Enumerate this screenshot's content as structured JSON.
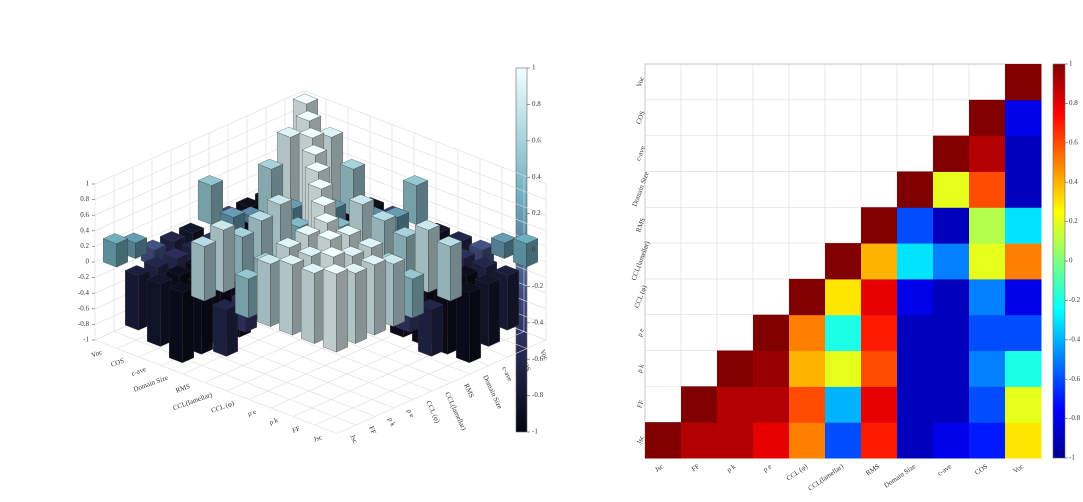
{
  "chart_data": [
    {
      "type": "bar3d",
      "labels": [
        "Jsc",
        "FF",
        "ρ k",
        "ρ e",
        "CCL (φ)",
        "CCL(lamellar)",
        "RMS",
        "Domain Size",
        "c-ave",
        "COS",
        "Voc"
      ],
      "matrix": [
        [
          1,
          0.9,
          0.9,
          0.8,
          0.5,
          -0.6,
          0.7,
          -0.9,
          -0.8,
          -0.7,
          0.3
        ],
        [
          0.9,
          1,
          0.9,
          0.9,
          0.6,
          -0.4,
          0.8,
          -0.9,
          -0.9,
          -0.6,
          0.2
        ],
        [
          0.9,
          0.9,
          1,
          0.95,
          0.4,
          0.2,
          0.6,
          -0.9,
          -0.9,
          -0.5,
          -0.2
        ],
        [
          0.8,
          0.9,
          0.95,
          1,
          0.5,
          -0.2,
          0.7,
          -0.9,
          -0.9,
          -0.6,
          -0.6
        ],
        [
          0.5,
          0.6,
          0.4,
          0.5,
          1,
          0.3,
          0.8,
          -0.8,
          -0.9,
          -0.5,
          -0.8
        ],
        [
          -0.6,
          -0.4,
          0.2,
          -0.2,
          0.3,
          1,
          0.4,
          -0.3,
          -0.5,
          0.2,
          0.5
        ],
        [
          0.7,
          0.8,
          0.6,
          0.7,
          0.8,
          0.4,
          1,
          -0.6,
          -0.9,
          0.1,
          -0.3
        ],
        [
          -0.9,
          -0.9,
          -0.9,
          -0.9,
          -0.8,
          -0.3,
          -0.6,
          1,
          0.2,
          0.6,
          -0.9
        ],
        [
          -0.8,
          -0.9,
          -0.9,
          -0.9,
          -0.9,
          -0.5,
          -0.9,
          0.2,
          1,
          0.9,
          -0.9
        ],
        [
          -0.7,
          -0.6,
          -0.5,
          -0.6,
          -0.5,
          0.2,
          0.1,
          0.6,
          0.9,
          1,
          -0.8
        ],
        [
          0.3,
          0.2,
          -0.2,
          -0.6,
          -0.8,
          0.5,
          -0.3,
          -0.9,
          -0.9,
          -0.8,
          1
        ]
      ],
      "zlim": [
        -1,
        1
      ],
      "zticks": [
        -1,
        -0.8,
        -0.6,
        -0.4,
        -0.2,
        0,
        0.2,
        0.4,
        0.6,
        0.8,
        1
      ],
      "clim": [
        -1,
        1
      ],
      "cticks": [
        -1,
        -0.8,
        -0.6,
        -0.4,
        -0.2,
        0,
        0.2,
        0.4,
        0.6,
        0.8,
        1
      ]
    },
    {
      "type": "contour",
      "labels": [
        "Jsc",
        "FF",
        "ρ k",
        "ρ e",
        "CCL (φ)",
        "CCL(lamellar)",
        "RMS",
        "Domain Size",
        "c-ave",
        "COS",
        "Voc"
      ],
      "matrix": [
        [
          1,
          0.9,
          0.9,
          0.8,
          0.5,
          -0.6,
          0.7,
          -0.9,
          -0.8,
          -0.7,
          0.3
        ],
        [
          null,
          1,
          0.9,
          0.9,
          0.6,
          -0.4,
          0.8,
          -0.9,
          -0.9,
          -0.6,
          0.2
        ],
        [
          null,
          null,
          1,
          0.95,
          0.4,
          0.2,
          0.6,
          -0.9,
          -0.9,
          -0.5,
          -0.2
        ],
        [
          null,
          null,
          null,
          1,
          0.5,
          -0.2,
          0.7,
          -0.9,
          -0.9,
          -0.6,
          -0.6
        ],
        [
          null,
          null,
          null,
          null,
          1,
          0.3,
          0.8,
          -0.8,
          -0.9,
          -0.5,
          -0.8
        ],
        [
          null,
          null,
          null,
          null,
          null,
          1,
          0.4,
          -0.3,
          -0.5,
          0.2,
          0.5
        ],
        [
          null,
          null,
          null,
          null,
          null,
          null,
          1,
          -0.6,
          -0.9,
          0.1,
          -0.3
        ],
        [
          null,
          null,
          null,
          null,
          null,
          null,
          null,
          1,
          0.2,
          0.6,
          -0.9
        ],
        [
          null,
          null,
          null,
          null,
          null,
          null,
          null,
          null,
          1,
          0.9,
          -0.9
        ],
        [
          null,
          null,
          null,
          null,
          null,
          null,
          null,
          null,
          null,
          1,
          -0.8
        ],
        [
          null,
          null,
          null,
          null,
          null,
          null,
          null,
          null,
          null,
          null,
          1
        ]
      ],
      "clim": [
        -1,
        1
      ],
      "cticks": [
        -1,
        -0.8,
        -0.6,
        -0.4,
        -0.2,
        0,
        0.2,
        0.4,
        0.6,
        0.8,
        1
      ]
    }
  ]
}
